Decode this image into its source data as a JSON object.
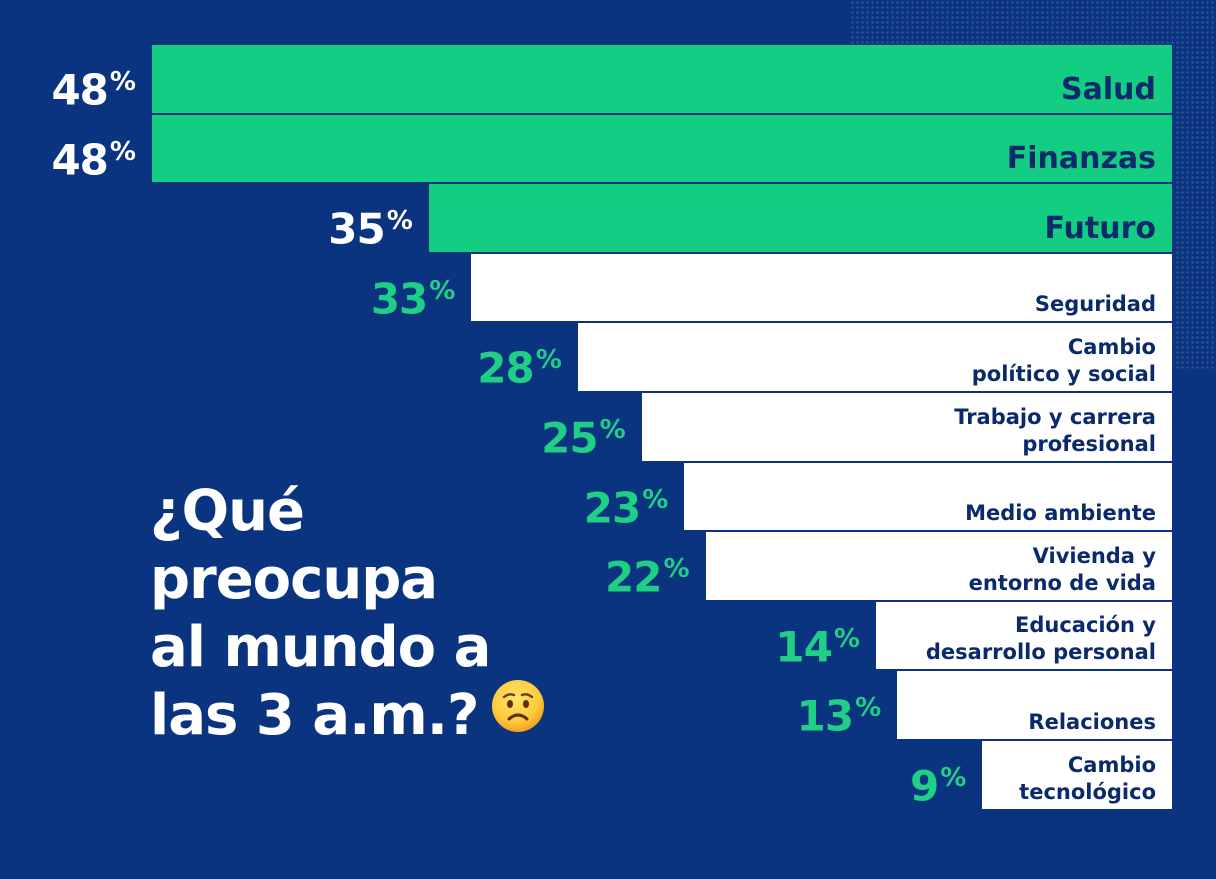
{
  "headline": {
    "line1": "¿Qué",
    "line2": "preocupa",
    "line3": "al mundo a",
    "line4": "las 3 a.m.?",
    "emoji_icon": "worried-face-icon"
  },
  "colors": {
    "background": "#0a3380",
    "highlight_bar": "#13cd82",
    "regular_bar": "#ffffff",
    "highlight_value_text": "#ffffff",
    "regular_value_text": "#1ecf85",
    "label_text": "#0a2a6b"
  },
  "chart_data": {
    "type": "bar",
    "orientation": "horizontal",
    "unit": "%",
    "categories": [
      "Salud",
      "Finanzas",
      "Futuro",
      "Seguridad",
      "Cambio\npolítico y social",
      "Trabajo y carrera\nprofesional",
      "Medio ambiente",
      "Vivienda y\nentorno de vida",
      "Educación y\ndesarrollo personal",
      "Relaciones",
      "Cambio\ntecnológico"
    ],
    "values": [
      48,
      48,
      35,
      33,
      28,
      25,
      23,
      22,
      14,
      13,
      9
    ],
    "highlighted": [
      true,
      true,
      true,
      false,
      false,
      false,
      false,
      false,
      false,
      false,
      false
    ],
    "value_labels": [
      "48",
      "48",
      "35",
      "33",
      "28",
      "25",
      "23",
      "22",
      "14",
      "13",
      "9"
    ],
    "value_suffix": "%",
    "bar_alignment": "right",
    "grid": false,
    "legend": "none"
  }
}
